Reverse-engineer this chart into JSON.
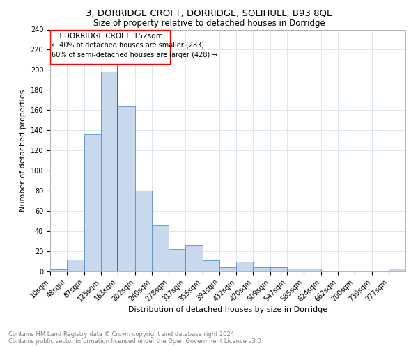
{
  "title1": "3, DORRIDGE CROFT, DORRIDGE, SOLIHULL, B93 8QL",
  "title2": "Size of property relative to detached houses in Dorridge",
  "xlabel": "Distribution of detached houses by size in Dorridge",
  "ylabel": "Number of detached properties",
  "bar_labels": [
    "10sqm",
    "48sqm",
    "87sqm",
    "125sqm",
    "163sqm",
    "202sqm",
    "240sqm",
    "278sqm",
    "317sqm",
    "355sqm",
    "394sqm",
    "432sqm",
    "470sqm",
    "509sqm",
    "547sqm",
    "585sqm",
    "624sqm",
    "662sqm",
    "700sqm",
    "739sqm",
    "777sqm"
  ],
  "bar_values": [
    2,
    12,
    136,
    198,
    164,
    80,
    46,
    22,
    26,
    11,
    4,
    10,
    4,
    4,
    3,
    3,
    0,
    0,
    0,
    0,
    3
  ],
  "bar_color": "#c9d9ed",
  "bar_edge_color": "#5b8dc8",
  "annotation_title": "3 DORRIDGE CROFT: 152sqm",
  "annotation_line1": "← 40% of detached houses are smaller (283)",
  "annotation_line2": "60% of semi-detached houses are larger (428) →",
  "red_line_x": 163,
  "ylim": [
    0,
    240
  ],
  "yticks": [
    0,
    20,
    40,
    60,
    80,
    100,
    120,
    140,
    160,
    180,
    200,
    220,
    240
  ],
  "footer_line1": "Contains HM Land Registry data © Crown copyright and database right 2024.",
  "footer_line2": "Contains public sector information licensed under the Open Government Licence v3.0.",
  "bg_color": "#ffffff",
  "grid_color": "#dde6f0",
  "title1_fontsize": 9.5,
  "title2_fontsize": 8.5,
  "xlabel_fontsize": 8,
  "ylabel_fontsize": 8,
  "tick_fontsize": 7,
  "footer_fontsize": 6,
  "ann_title_fontsize": 7.5,
  "ann_text_fontsize": 7
}
